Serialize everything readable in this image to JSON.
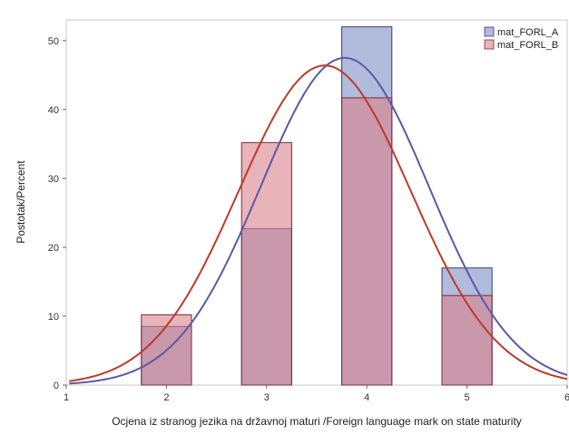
{
  "chart_data": {
    "type": "bar",
    "xlabel": "Ocjena iz stranog jezika na državnoj maturi /Foreign language mark on state maturity",
    "ylabel": "Postotak/Percent",
    "xlim": [
      1,
      6
    ],
    "ylim": [
      0,
      53
    ],
    "x_ticks": [
      "1",
      "2",
      "3",
      "4",
      "5",
      "6"
    ],
    "y_ticks": [
      "0",
      "10",
      "20",
      "30",
      "40",
      "50"
    ],
    "categories": [
      2,
      3,
      4,
      5
    ],
    "bin_width": 1,
    "grid": false,
    "legend_position": "top-right",
    "series": [
      {
        "name": "mat_FORL_A",
        "values": [
          8.5,
          22.7,
          52.0,
          17.0
        ],
        "color": "#7d8fc4",
        "normal_curve": {
          "mean": 3.78,
          "sd": 0.84,
          "color": "#5a5aa8"
        }
      },
      {
        "name": "mat_FORL_B",
        "values": [
          10.2,
          35.2,
          41.7,
          13.0
        ],
        "color": "#d9808a",
        "normal_curve": {
          "mean": 3.58,
          "sd": 0.86,
          "color": "#c0392b"
        }
      }
    ]
  }
}
